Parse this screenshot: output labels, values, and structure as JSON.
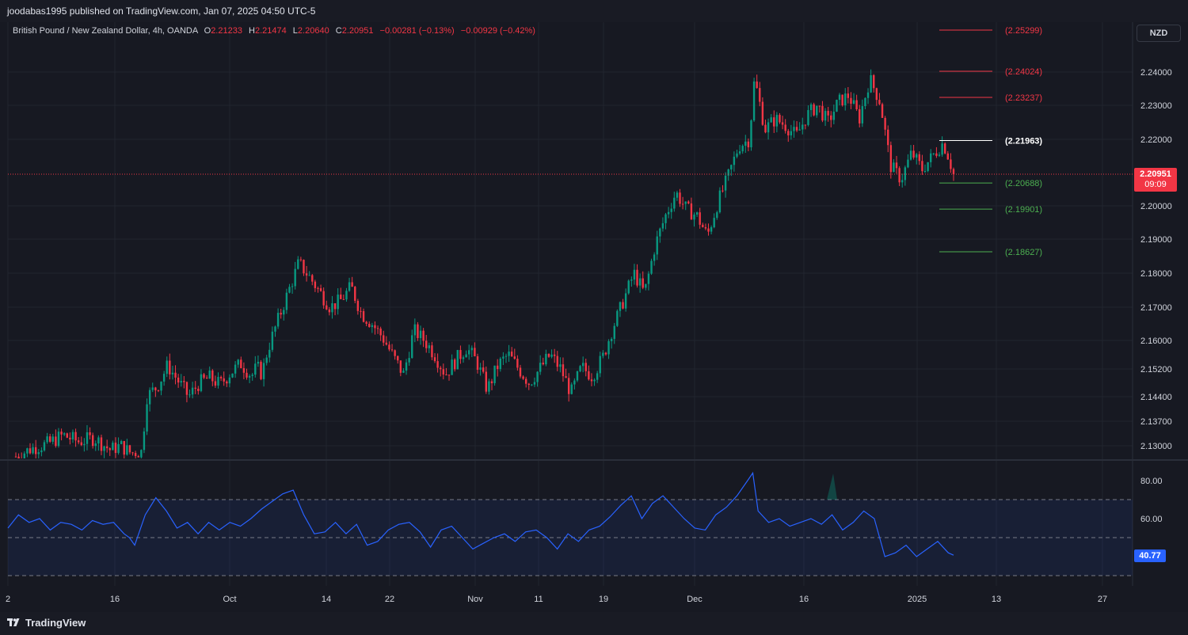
{
  "header": {
    "publisher_line": "joodabas1995 published on TradingView.com, Jan 07, 2025 04:50 UTC-5"
  },
  "legend": {
    "symbol": "British Pound / New Zealand Dollar, 4h, OANDA",
    "o_label": "O",
    "o_value": "2.21233",
    "h_label": "H",
    "h_value": "2.21474",
    "l_label": "L",
    "l_value": "2.20640",
    "c_label": "C",
    "c_value": "2.20951",
    "change": "−0.00281 (−0.13%)",
    "change2": "−0.00929 (−0.42%)"
  },
  "toolbar": {
    "currency": "NZD"
  },
  "current_price": {
    "price": "2.20951",
    "countdown": "09:09"
  },
  "rsi": {
    "current": "40.77"
  },
  "footer": {
    "brand": "TradingView"
  },
  "colors": {
    "up": "#089981",
    "down": "#f23645",
    "rsi_line": "#2962ff",
    "green_level": "#4caf50",
    "white_level": "#ffffff"
  },
  "chart_data": {
    "type": "candlestick",
    "price_axis_ticks": [
      "2.24000",
      "2.23000",
      "2.22000",
      "2.20000",
      "2.19000",
      "2.18000",
      "2.17000",
      "2.16000",
      "2.15200",
      "2.14400",
      "2.13700",
      "2.13000"
    ],
    "rsi_axis_ticks": [
      "80.00",
      "60.00"
    ],
    "time_axis_ticks": [
      "2",
      "16",
      "Oct",
      "14",
      "22",
      "Nov",
      "11",
      "19",
      "Dec",
      "16",
      "2025",
      "13",
      "27"
    ],
    "levels": [
      {
        "label": "(2.25299)",
        "value": 2.25299,
        "kind": "resistance"
      },
      {
        "label": "(2.24024)",
        "value": 2.24024,
        "kind": "resistance"
      },
      {
        "label": "(2.23237)",
        "value": 2.23237,
        "kind": "resistance"
      },
      {
        "label": "(2.21963)",
        "value": 2.21963,
        "kind": "pivot"
      },
      {
        "label": "(2.20688)",
        "value": 2.20688,
        "kind": "support"
      },
      {
        "label": "(2.19901)",
        "value": 2.19901,
        "kind": "support"
      },
      {
        "label": "(2.18627)",
        "value": 2.18627,
        "kind": "support"
      }
    ],
    "price_path": [
      [
        0,
        2.1268
      ],
      [
        3,
        2.1292
      ],
      [
        6,
        2.1305
      ],
      [
        9,
        2.133
      ],
      [
        12,
        2.1312
      ],
      [
        15,
        2.1322
      ],
      [
        18,
        2.1288
      ],
      [
        20,
        2.13
      ],
      [
        22,
        2.1278
      ],
      [
        23,
        2.1282
      ],
      [
        24,
        2.1282
      ],
      [
        25,
        2.144
      ],
      [
        27,
        2.147
      ],
      [
        29,
        2.153
      ],
      [
        31,
        2.1485
      ],
      [
        33,
        2.144
      ],
      [
        35,
        2.148
      ],
      [
        37,
        2.1495
      ],
      [
        39,
        2.1475
      ],
      [
        41,
        2.151
      ],
      [
        43,
        2.1535
      ],
      [
        45,
        2.15
      ],
      [
        46,
        2.1525
      ],
      [
        47,
        2.1505
      ],
      [
        48,
        2.157
      ],
      [
        50,
        2.166
      ],
      [
        52,
        2.1745
      ],
      [
        54,
        2.183
      ],
      [
        56,
        2.179
      ],
      [
        58,
        2.1745
      ],
      [
        60,
        2.17
      ],
      [
        62,
        2.172
      ],
      [
        64,
        2.176
      ],
      [
        66,
        2.168
      ],
      [
        68,
        2.165
      ],
      [
        70,
        2.161
      ],
      [
        72,
        2.1555
      ],
      [
        74,
        2.1505
      ],
      [
        76,
        2.163
      ],
      [
        78,
        2.16
      ],
      [
        80,
        2.156
      ],
      [
        82,
        2.1505
      ],
      [
        84,
        2.1545
      ],
      [
        86,
        2.158
      ],
      [
        88,
        2.154
      ],
      [
        90,
        2.146
      ],
      [
        92,
        2.153
      ],
      [
        94,
        2.156
      ],
      [
        96,
        2.152
      ],
      [
        98,
        2.148
      ],
      [
        100,
        2.152
      ],
      [
        102,
        2.156
      ],
      [
        104,
        2.152
      ],
      [
        106,
        2.145
      ],
      [
        108,
        2.1525
      ],
      [
        110,
        2.15
      ],
      [
        112,
        2.155
      ],
      [
        114,
        2.164
      ],
      [
        116,
        2.172
      ],
      [
        118,
        2.18
      ],
      [
        120,
        2.174
      ],
      [
        122,
        2.188
      ],
      [
        124,
        2.197
      ],
      [
        126,
        2.204
      ],
      [
        128,
        2.199
      ],
      [
        130,
        2.197
      ],
      [
        132,
        2.191
      ],
      [
        134,
        2.201
      ],
      [
        136,
        2.209
      ],
      [
        138,
        2.218
      ],
      [
        140,
        2.22
      ],
      [
        141,
        2.238
      ],
      [
        143,
        2.223
      ],
      [
        145,
        2.226
      ],
      [
        147,
        2.224
      ],
      [
        149,
        2.221
      ],
      [
        151,
        2.227
      ],
      [
        153,
        2.23
      ],
      [
        155,
        2.225
      ],
      [
        157,
        2.231
      ],
      [
        159,
        2.233
      ],
      [
        161,
        2.226
      ],
      [
        163,
        2.238
      ],
      [
        165,
        2.231
      ],
      [
        167,
        2.212
      ],
      [
        169,
        2.208
      ],
      [
        171,
        2.216
      ],
      [
        173,
        2.211
      ],
      [
        175,
        2.215
      ],
      [
        177,
        2.219
      ],
      [
        178,
        2.215
      ],
      [
        179,
        2.2095
      ]
    ],
    "rsi_path": [
      [
        0,
        55
      ],
      [
        2,
        62
      ],
      [
        4,
        58
      ],
      [
        6,
        60
      ],
      [
        8,
        54
      ],
      [
        10,
        58
      ],
      [
        12,
        57
      ],
      [
        14,
        54
      ],
      [
        16,
        59
      ],
      [
        18,
        57
      ],
      [
        20,
        58
      ],
      [
        22,
        52
      ],
      [
        23,
        50
      ],
      [
        24,
        46
      ],
      [
        26,
        62
      ],
      [
        28,
        71
      ],
      [
        30,
        64
      ],
      [
        32,
        55
      ],
      [
        34,
        58
      ],
      [
        36,
        52
      ],
      [
        38,
        58
      ],
      [
        40,
        54
      ],
      [
        42,
        58
      ],
      [
        44,
        56
      ],
      [
        46,
        60
      ],
      [
        48,
        65
      ],
      [
        50,
        69
      ],
      [
        52,
        73
      ],
      [
        54,
        75
      ],
      [
        56,
        62
      ],
      [
        58,
        52
      ],
      [
        60,
        53
      ],
      [
        62,
        58
      ],
      [
        64,
        52
      ],
      [
        66,
        57
      ],
      [
        68,
        46
      ],
      [
        70,
        48
      ],
      [
        72,
        54
      ],
      [
        74,
        57
      ],
      [
        76,
        58
      ],
      [
        78,
        53
      ],
      [
        80,
        45
      ],
      [
        82,
        54
      ],
      [
        84,
        56
      ],
      [
        86,
        50
      ],
      [
        88,
        44
      ],
      [
        90,
        47
      ],
      [
        92,
        50
      ],
      [
        94,
        52
      ],
      [
        96,
        48
      ],
      [
        98,
        53
      ],
      [
        100,
        54
      ],
      [
        102,
        50
      ],
      [
        104,
        44
      ],
      [
        106,
        52
      ],
      [
        108,
        48
      ],
      [
        110,
        54
      ],
      [
        112,
        56
      ],
      [
        114,
        61
      ],
      [
        116,
        67
      ],
      [
        118,
        72
      ],
      [
        120,
        60
      ],
      [
        122,
        68
      ],
      [
        124,
        72
      ],
      [
        126,
        66
      ],
      [
        128,
        60
      ],
      [
        130,
        55
      ],
      [
        132,
        54
      ],
      [
        134,
        62
      ],
      [
        136,
        66
      ],
      [
        138,
        72
      ],
      [
        140,
        80
      ],
      [
        141,
        84
      ],
      [
        142,
        64
      ],
      [
        144,
        58
      ],
      [
        146,
        60
      ],
      [
        148,
        56
      ],
      [
        150,
        58
      ],
      [
        152,
        60
      ],
      [
        154,
        57
      ],
      [
        156,
        62
      ],
      [
        158,
        54
      ],
      [
        160,
        58
      ],
      [
        162,
        64
      ],
      [
        164,
        60
      ],
      [
        166,
        40
      ],
      [
        168,
        42
      ],
      [
        170,
        46
      ],
      [
        172,
        40
      ],
      [
        174,
        44
      ],
      [
        176,
        48
      ],
      [
        178,
        42
      ],
      [
        179,
        40.77
      ]
    ]
  }
}
